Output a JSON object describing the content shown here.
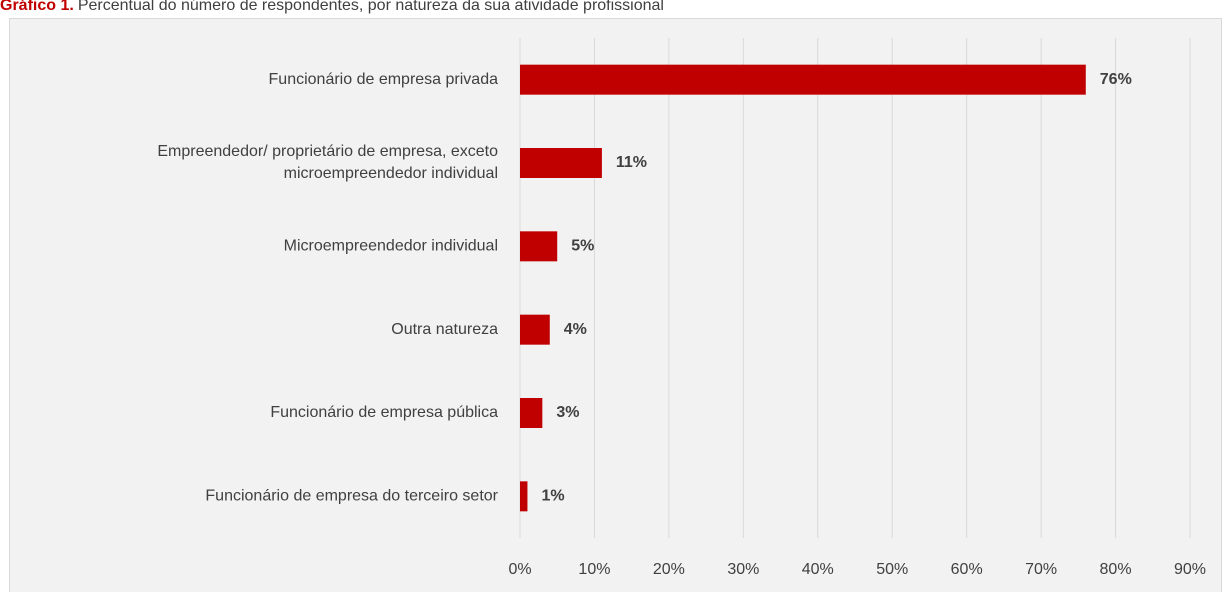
{
  "chart_data": {
    "type": "barh",
    "title_number": "Gráfico 1.",
    "title": "Percentual do número de respondentes, por natureza da sua atividade profissional",
    "categories": [
      [
        "Funcionário de empresa privada"
      ],
      [
        "Empreendedor/ proprietário de empresa, exceto",
        "microempreendedor individual"
      ],
      [
        "Microempreendedor individual"
      ],
      [
        "Outra natureza"
      ],
      [
        "Funcionário de empresa pública"
      ],
      [
        "Funcionário de empresa do terceiro setor"
      ]
    ],
    "values": [
      76,
      11,
      5,
      4,
      3,
      1
    ],
    "value_labels": [
      "76%",
      "11%",
      "5%",
      "4%",
      "3%",
      "1%"
    ],
    "color": "#c00000",
    "xlim": [
      0,
      90
    ],
    "xticks": [
      {
        "value": 0,
        "label": "0%"
      },
      {
        "value": 10,
        "label": "10%"
      },
      {
        "value": 20,
        "label": "20%"
      },
      {
        "value": 30,
        "label": "30%"
      },
      {
        "value": 40,
        "label": "40%"
      },
      {
        "value": 50,
        "label": "50%"
      },
      {
        "value": 60,
        "label": "60%"
      },
      {
        "value": 70,
        "label": "70%"
      },
      {
        "value": 80,
        "label": "80%"
      },
      {
        "value": 90,
        "label": "90%"
      }
    ],
    "grid": true
  }
}
